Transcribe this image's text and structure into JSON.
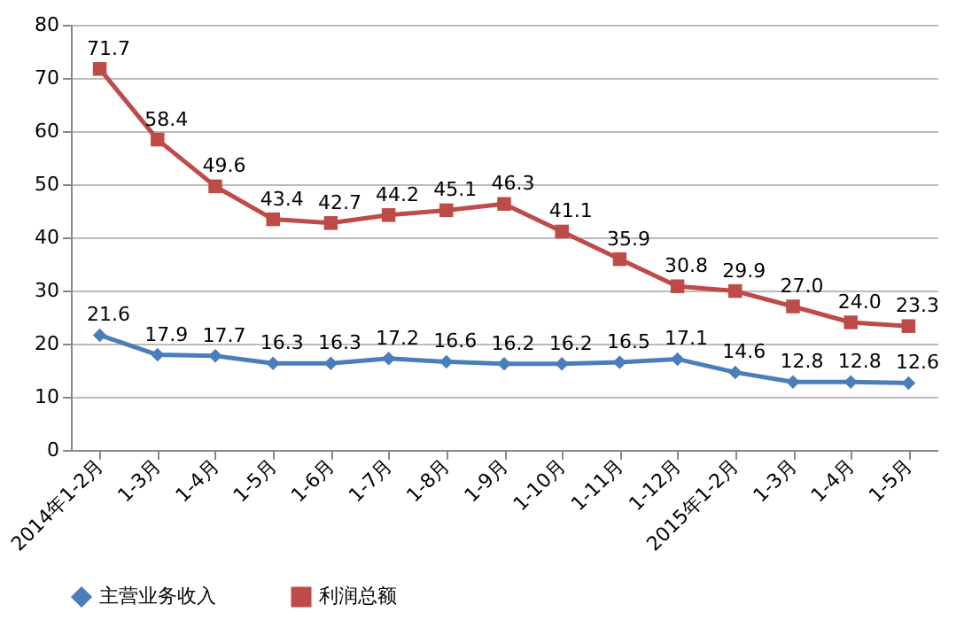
{
  "chart_data": {
    "type": "line",
    "categories": [
      "2014年1-2月",
      "1-3月",
      "1-4月",
      "1-5月",
      "1-6月",
      "1-7月",
      "1-8月",
      "1-9月",
      "1-10月",
      "1-11月",
      "1-12月",
      "2015年1-2月",
      "1-3月",
      "1-4月",
      "1-5月"
    ],
    "series": [
      {
        "name": "主营业务收入",
        "color": "#4a7ebb",
        "marker": "diamond",
        "values": [
          21.6,
          17.9,
          17.7,
          16.3,
          16.3,
          17.2,
          16.6,
          16.2,
          16.2,
          16.5,
          17.1,
          14.6,
          12.8,
          12.8,
          12.6
        ],
        "value_labels": [
          "21.6",
          "17.9",
          "17.7",
          "16.3",
          "16.3",
          "17.2",
          "16.6",
          "16.2",
          "16.2",
          "16.5",
          "17.1",
          "14.6",
          "12.8",
          "12.8",
          "12.6"
        ]
      },
      {
        "name": "利润总额",
        "color": "#be4b48",
        "marker": "square",
        "values": [
          71.7,
          58.4,
          49.6,
          43.4,
          42.7,
          44.2,
          45.1,
          46.3,
          41.1,
          35.9,
          30.8,
          29.9,
          27.0,
          24.0,
          23.3
        ],
        "value_labels": [
          "71.7",
          "58.4",
          "49.6",
          "43.4",
          "42.7",
          "44.2",
          "45.1",
          "46.3",
          "41.1",
          "35.9",
          "30.8",
          "29.9",
          "27.0",
          "24.0",
          "23.3"
        ]
      }
    ],
    "ylim": [
      0,
      80
    ],
    "yticks": [
      0,
      10,
      20,
      30,
      40,
      50,
      60,
      70,
      80
    ],
    "grid": "y",
    "legend": "bottom",
    "data_labels": true,
    "line_style": "solid"
  }
}
